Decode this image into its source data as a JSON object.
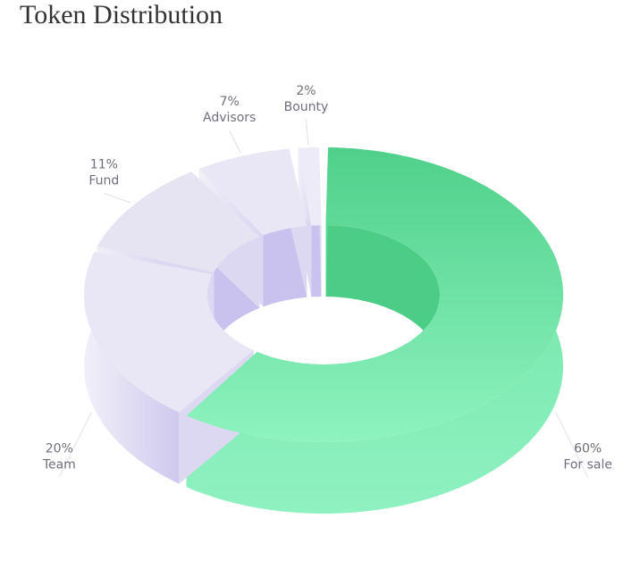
{
  "chart_data": {
    "type": "pie",
    "title": "Token Distribution",
    "categories": [
      "For sale",
      "Team",
      "Fund",
      "Advisors",
      "Bounty"
    ],
    "values": [
      60,
      20,
      11,
      7,
      2
    ],
    "value_labels": [
      "60%",
      "20%",
      "11%",
      "7%",
      "2%"
    ],
    "colors": [
      "#5fdb97",
      "#e9e7f5",
      "#e6e4f3",
      "#e9e7f5",
      "#ecebf7"
    ]
  }
}
